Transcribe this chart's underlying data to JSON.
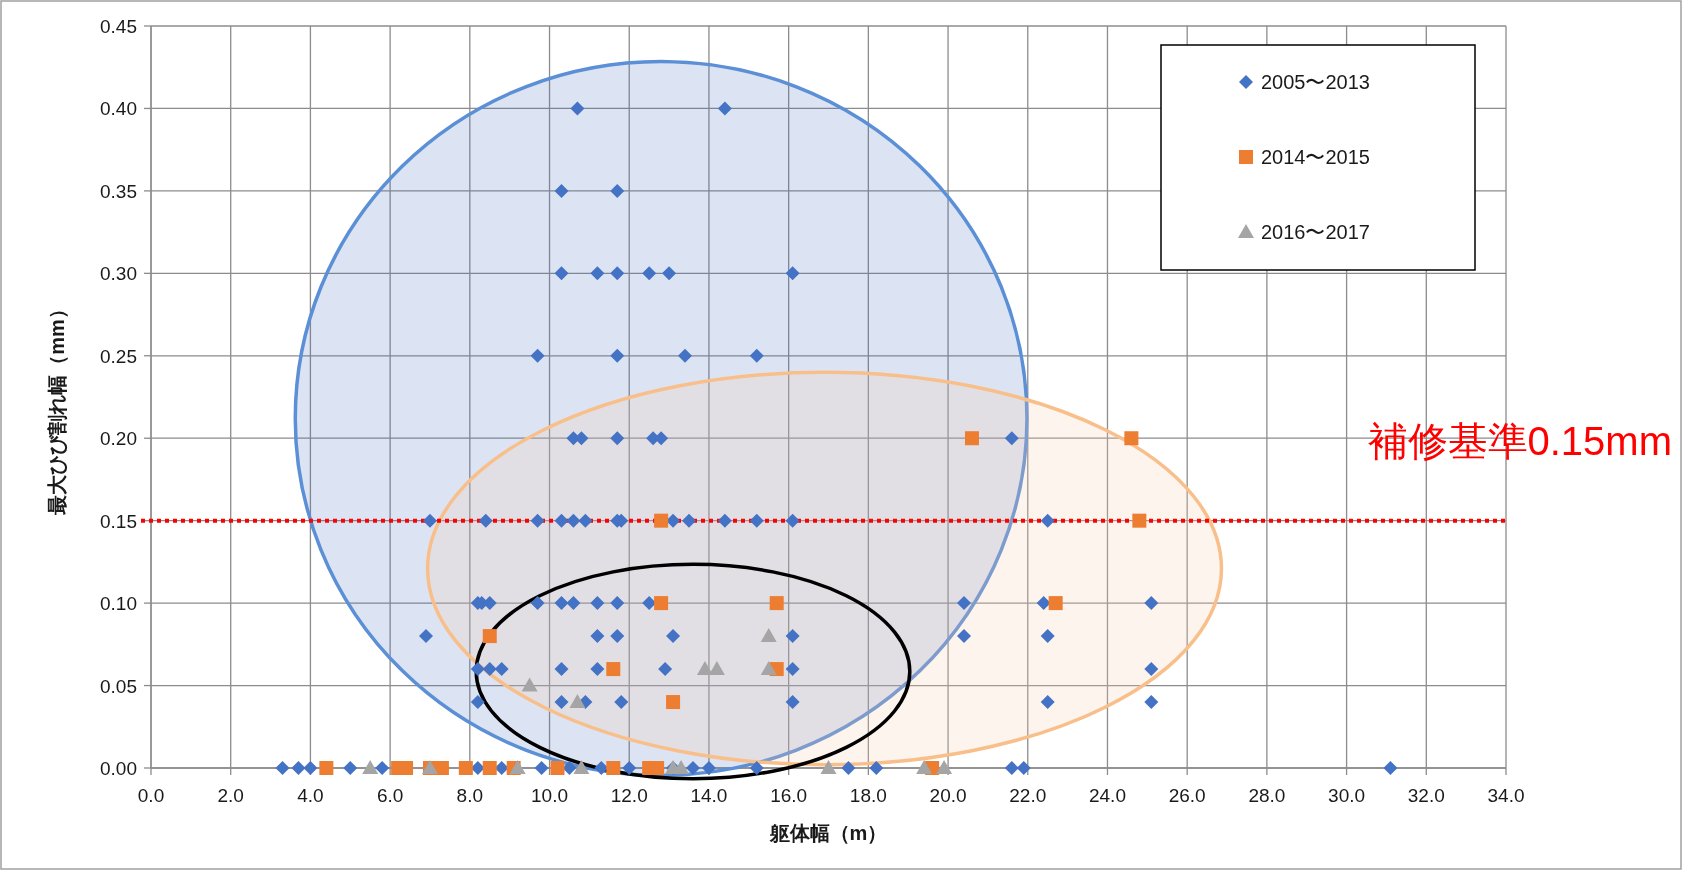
{
  "chart_data": {
    "type": "scatter",
    "xlabel": "躯体幅（m）",
    "ylabel": "最大ひび割れ幅（mm）",
    "xlim": [
      0,
      34
    ],
    "ylim": [
      0,
      0.45
    ],
    "xticks": [
      {
        "value": 0,
        "label": "0.0"
      },
      {
        "value": 2,
        "label": "2.0"
      },
      {
        "value": 4,
        "label": "4.0"
      },
      {
        "value": 6,
        "label": "6.0"
      },
      {
        "value": 8,
        "label": "8.0"
      },
      {
        "value": 10,
        "label": "10.0"
      },
      {
        "value": 12,
        "label": "12.0"
      },
      {
        "value": 14,
        "label": "14.0"
      },
      {
        "value": 16,
        "label": "16.0"
      },
      {
        "value": 18,
        "label": "18.0"
      },
      {
        "value": 20,
        "label": "20.0"
      },
      {
        "value": 22,
        "label": "22.0"
      },
      {
        "value": 24,
        "label": "24.0"
      },
      {
        "value": 26,
        "label": "26.0"
      },
      {
        "value": 28,
        "label": "28.0"
      },
      {
        "value": 30,
        "label": "30.0"
      },
      {
        "value": 32,
        "label": "32.0"
      },
      {
        "value": 34,
        "label": "34.0"
      }
    ],
    "yticks": [
      {
        "value": 0,
        "label": "0.00"
      },
      {
        "value": 0.05,
        "label": "0.05"
      },
      {
        "value": 0.1,
        "label": "0.10"
      },
      {
        "value": 0.15,
        "label": "0.15"
      },
      {
        "value": 0.2,
        "label": "0.20"
      },
      {
        "value": 0.25,
        "label": "0.25"
      },
      {
        "value": 0.3,
        "label": "0.30"
      },
      {
        "value": 0.35,
        "label": "0.35"
      },
      {
        "value": 0.4,
        "label": "0.40"
      },
      {
        "value": 0.45,
        "label": "0.45"
      }
    ],
    "grid": true,
    "legend": "top right",
    "ref_lines": [
      {
        "axis": "y",
        "value": 0.15,
        "label": "補修基準0.15mm",
        "color": "#ff0000",
        "line_style": "dotted"
      }
    ],
    "series": [
      {
        "name": "2005〜2013",
        "color": "#4472c4",
        "marker": "diamond",
        "x": [
          10.7,
          14.4,
          10.3,
          11.7,
          10.3,
          11.2,
          11.7,
          12.5,
          13.0,
          16.1,
          9.7,
          11.7,
          13.4,
          15.2,
          10.6,
          10.8,
          11.7,
          12.6,
          12.8,
          21.6,
          7.0,
          8.4,
          9.7,
          10.3,
          10.6,
          10.9,
          11.7,
          11.8,
          13.1,
          13.5,
          14.4,
          15.2,
          16.1,
          22.5,
          8.2,
          8.3,
          8.5,
          9.7,
          10.3,
          10.6,
          11.2,
          11.7,
          12.5,
          20.4,
          22.4,
          25.1,
          6.9,
          11.2,
          11.7,
          13.1,
          16.1,
          20.4,
          22.5,
          8.2,
          8.5,
          8.8,
          10.3,
          11.2,
          12.9,
          16.1,
          25.1,
          8.2,
          10.3,
          10.9,
          11.8,
          16.1,
          22.5,
          25.1,
          3.3,
          3.7,
          4.0,
          5.0,
          5.8,
          8.2,
          8.8,
          9.8,
          10.5,
          11.3,
          12.0,
          13.1,
          13.6,
          14.0,
          15.2,
          17.5,
          18.2,
          21.6,
          21.9,
          31.1
        ],
        "values": [
          0.4,
          0.4,
          0.35,
          0.35,
          0.3,
          0.3,
          0.3,
          0.3,
          0.3,
          0.3,
          0.25,
          0.25,
          0.25,
          0.25,
          0.2,
          0.2,
          0.2,
          0.2,
          0.2,
          0.2,
          0.15,
          0.15,
          0.15,
          0.15,
          0.15,
          0.15,
          0.15,
          0.15,
          0.15,
          0.15,
          0.15,
          0.15,
          0.15,
          0.15,
          0.1,
          0.1,
          0.1,
          0.1,
          0.1,
          0.1,
          0.1,
          0.1,
          0.1,
          0.1,
          0.1,
          0.1,
          0.08,
          0.08,
          0.08,
          0.08,
          0.08,
          0.08,
          0.08,
          0.06,
          0.06,
          0.06,
          0.06,
          0.06,
          0.06,
          0.06,
          0.06,
          0.04,
          0.04,
          0.04,
          0.04,
          0.04,
          0.04,
          0.04,
          0,
          0,
          0,
          0,
          0,
          0,
          0,
          0,
          0,
          0,
          0,
          0,
          0,
          0,
          0,
          0,
          0,
          0,
          0,
          0
        ]
      },
      {
        "name": "2014〜2015",
        "color": "#ed7d31",
        "marker": "square",
        "x": [
          20.6,
          24.6,
          12.8,
          24.8,
          12.8,
          15.7,
          22.7,
          8.5,
          11.6,
          15.7,
          13.1,
          4.4,
          6.2,
          6.4,
          7.0,
          7.3,
          7.9,
          8.5,
          9.1,
          10.2,
          11.6,
          12.5,
          12.7,
          19.6
        ],
        "values": [
          0.2,
          0.2,
          0.15,
          0.15,
          0.1,
          0.1,
          0.1,
          0.08,
          0.06,
          0.06,
          0.04,
          0,
          0,
          0,
          0,
          0,
          0,
          0,
          0,
          0,
          0,
          0,
          0,
          0
        ]
      },
      {
        "name": "2016〜2017",
        "color": "#a5a5a5",
        "marker": "triangle",
        "x": [
          15.5,
          13.9,
          14.2,
          15.5,
          9.5,
          10.7,
          5.5,
          7.0,
          9.2,
          10.8,
          13.1,
          13.3,
          17.0,
          19.4,
          19.9
        ],
        "values": [
          0.08,
          0.06,
          0.06,
          0.06,
          0.05,
          0.04,
          0,
          0,
          0,
          0,
          0,
          0,
          0,
          0,
          0
        ]
      }
    ]
  }
}
